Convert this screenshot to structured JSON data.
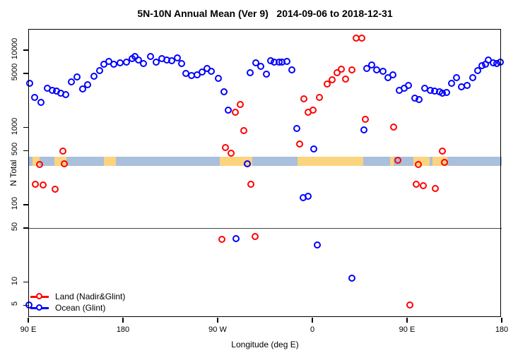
{
  "title": "5N-10N Annual Mean (Ver 9)   2014-09-06 to 2018-12-31",
  "chart_data": {
    "type": "scatter",
    "title": "5N-10N Annual Mean (Ver 9)   2014-09-06 to 2018-12-31",
    "xlabel": "Longitude (deg E)",
    "ylabel": "N Total",
    "x_axis": {
      "unit": "deg E (wrapped, 90E eastward around to 180)",
      "range_deg": [
        90,
        540
      ],
      "ticks": [
        {
          "deg": 90,
          "label": "90 E"
        },
        {
          "deg": 180,
          "label": "180"
        },
        {
          "deg": 270,
          "label": "90 W"
        },
        {
          "deg": 360,
          "label": "0"
        },
        {
          "deg": 450,
          "label": "90 E"
        },
        {
          "deg": 540,
          "label": "180"
        }
      ]
    },
    "y_axis": {
      "scale": "log10",
      "range": [
        3.4,
        19000
      ],
      "ticks": [
        {
          "value": 10000,
          "label": "10000"
        },
        {
          "value": 5000,
          "label": "5000"
        },
        {
          "value": 1000,
          "label": "1000"
        },
        {
          "value": 500,
          "label": "500"
        },
        {
          "value": 100,
          "label": "100"
        },
        {
          "value": 50,
          "label": "50"
        },
        {
          "value": 10,
          "label": "10"
        },
        {
          "value": 5,
          "label": "5"
        }
      ]
    },
    "reference_line_value": 50,
    "map_band": {
      "description": "land/ocean strip for 5N-10N",
      "ocean_color": "#a9bfdc",
      "land_color": "#fbd47f",
      "n_value_range": [
        320,
        420
      ],
      "land_patches_deg": [
        [
          94,
          101
        ],
        [
          115,
          126.5
        ],
        [
          162,
          173
        ],
        [
          272,
          303
        ],
        [
          346,
          408.5
        ],
        [
          434,
          437
        ],
        [
          456,
          471.5
        ],
        [
          474,
          488.5
        ]
      ]
    },
    "legend": {
      "position": "bottom-left",
      "entries": [
        {
          "label": "Land (Nadir&Glint)",
          "color": "#ff0000"
        },
        {
          "label": "Ocean (Glint)",
          "color": "#0000ff"
        }
      ]
    },
    "series": [
      {
        "name": "Land (Nadir&Glint)",
        "color": "#ff0000",
        "points": [
          [
            97.4,
            181
          ],
          [
            101.2,
            330
          ],
          [
            104.8,
            177
          ],
          [
            116,
            158
          ],
          [
            123.1,
            490
          ],
          [
            124.9,
            337
          ],
          [
            274.7,
            35
          ],
          [
            277.6,
            540
          ],
          [
            283,
            455
          ],
          [
            287,
            1540
          ],
          [
            292,
            1970
          ],
          [
            295.5,
            900
          ],
          [
            302.3,
            181
          ],
          [
            306.1,
            38
          ],
          [
            348,
            600
          ],
          [
            352.4,
            2300
          ],
          [
            356.7,
            1540
          ],
          [
            361.4,
            1670
          ],
          [
            367.2,
            2430
          ],
          [
            374.3,
            3620
          ],
          [
            379.3,
            4050
          ],
          [
            384,
            5000
          ],
          [
            387.7,
            5650
          ],
          [
            391.8,
            4160
          ],
          [
            397.8,
            5430
          ],
          [
            402.3,
            14000
          ],
          [
            407.5,
            14000
          ],
          [
            410.6,
            1260
          ],
          [
            437.7,
            1000
          ],
          [
            441.4,
            370
          ],
          [
            453.1,
            5
          ],
          [
            458.9,
            180
          ],
          [
            461.2,
            324
          ],
          [
            465.7,
            176
          ],
          [
            477.1,
            160
          ],
          [
            484,
            490
          ],
          [
            485.7,
            350
          ]
        ]
      },
      {
        "name": "Ocean (Glint)",
        "color": "#0000ff",
        "points": [
          [
            91.3,
            5
          ],
          [
            91.8,
            3700
          ],
          [
            96.7,
            2400
          ],
          [
            102.3,
            2100
          ],
          [
            108.3,
            3200
          ],
          [
            113,
            3000
          ],
          [
            117.5,
            2900
          ],
          [
            121.4,
            2750
          ],
          [
            125.8,
            2600
          ],
          [
            131.4,
            3800
          ],
          [
            137,
            4400
          ],
          [
            141.9,
            3100
          ],
          [
            147.1,
            3500
          ],
          [
            153.1,
            4500
          ],
          [
            158.3,
            5400
          ],
          [
            162.1,
            6450
          ],
          [
            167.2,
            7000
          ],
          [
            171.7,
            6450
          ],
          [
            177.8,
            6800
          ],
          [
            183.6,
            6950
          ],
          [
            188.9,
            7600
          ],
          [
            191.9,
            8200
          ],
          [
            195.2,
            7400
          ],
          [
            199.7,
            6600
          ],
          [
            206.4,
            8100
          ],
          [
            212,
            6950
          ],
          [
            217.1,
            7600
          ],
          [
            222.1,
            7400
          ],
          [
            227,
            7200
          ],
          [
            232.2,
            7800
          ],
          [
            235.9,
            6600
          ],
          [
            240.4,
            4900
          ],
          [
            245.6,
            4650
          ],
          [
            250.7,
            4730
          ],
          [
            255.7,
            5150
          ],
          [
            260.6,
            5750
          ],
          [
            264.6,
            5260
          ],
          [
            270.9,
            4240
          ],
          [
            276.2,
            2830
          ],
          [
            280.7,
            1670
          ],
          [
            287.7,
            36
          ],
          [
            298.7,
            335
          ],
          [
            301.6,
            5070
          ],
          [
            306.7,
            6700
          ],
          [
            311.6,
            6100
          ],
          [
            316.6,
            4840
          ],
          [
            320.6,
            7200
          ],
          [
            324,
            6950
          ],
          [
            328.5,
            6850
          ],
          [
            331.8,
            6950
          ],
          [
            335.9,
            7050
          ],
          [
            340.8,
            5430
          ],
          [
            345.7,
            950
          ],
          [
            351.5,
            121
          ],
          [
            356.4,
            128
          ],
          [
            362,
            520
          ],
          [
            365.4,
            30
          ],
          [
            397.8,
            11
          ],
          [
            409.7,
            910
          ],
          [
            411.9,
            5750
          ],
          [
            416.9,
            6360
          ],
          [
            421.8,
            5520
          ],
          [
            427.6,
            5260
          ],
          [
            432.5,
            4340
          ],
          [
            437,
            4730
          ],
          [
            443.3,
            3000
          ],
          [
            447.8,
            3150
          ],
          [
            452,
            3440
          ],
          [
            457.6,
            2380
          ],
          [
            462.1,
            2270
          ],
          [
            467.2,
            3150
          ],
          [
            472.3,
            3000
          ],
          [
            476.9,
            2940
          ],
          [
            481.3,
            2850
          ],
          [
            484,
            2740
          ],
          [
            488.1,
            2790
          ],
          [
            492.5,
            3700
          ],
          [
            497.5,
            4340
          ],
          [
            502.4,
            3280
          ],
          [
            507.5,
            3440
          ],
          [
            512.7,
            4340
          ],
          [
            517.6,
            5330
          ],
          [
            521.7,
            6230
          ],
          [
            524.7,
            6450
          ],
          [
            527.7,
            7430
          ],
          [
            532.1,
            6800
          ],
          [
            535.9,
            6600
          ],
          [
            538.8,
            6950
          ]
        ]
      }
    ]
  }
}
